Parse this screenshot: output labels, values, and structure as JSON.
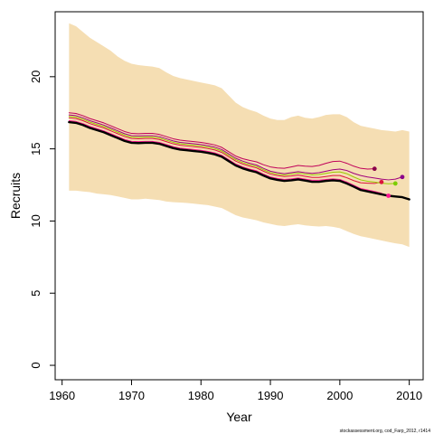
{
  "chart_data": {
    "type": "line",
    "xlabel": "Year",
    "ylabel": "Recruits",
    "xlim": [
      1959,
      2012
    ],
    "ylim": [
      -1,
      24.5
    ],
    "xticks": [
      1960,
      1970,
      1980,
      1990,
      2000,
      2010
    ],
    "yticks": [
      0,
      5,
      10,
      15,
      20
    ],
    "y_tick_rotation": "vertical",
    "grid": false,
    "legend": "none",
    "band": {
      "color": "#f5deb3",
      "x": [
        1961,
        1962,
        1963,
        1964,
        1965,
        1966,
        1967,
        1968,
        1969,
        1970,
        1971,
        1972,
        1973,
        1974,
        1975,
        1976,
        1977,
        1978,
        1979,
        1980,
        1981,
        1982,
        1983,
        1984,
        1985,
        1986,
        1987,
        1988,
        1989,
        1990,
        1991,
        1992,
        1993,
        1994,
        1995,
        1996,
        1997,
        1998,
        1999,
        2000,
        2001,
        2002,
        2003,
        2004,
        2005,
        2006,
        2007,
        2008,
        2009,
        2010
      ],
      "upper": [
        23.7,
        23.5,
        23.1,
        22.7,
        22.4,
        22.1,
        21.8,
        21.4,
        21.1,
        20.9,
        20.8,
        20.75,
        20.7,
        20.6,
        20.3,
        20.05,
        19.9,
        19.8,
        19.7,
        19.6,
        19.5,
        19.4,
        19.2,
        18.7,
        18.2,
        17.9,
        17.7,
        17.55,
        17.3,
        17.1,
        17.0,
        17.0,
        17.2,
        17.3,
        17.15,
        17.1,
        17.2,
        17.35,
        17.4,
        17.4,
        17.2,
        16.85,
        16.6,
        16.5,
        16.4,
        16.3,
        16.25,
        16.2,
        16.3,
        16.2
      ],
      "lower": [
        12.1,
        12.1,
        12.05,
        12.0,
        11.9,
        11.85,
        11.8,
        11.7,
        11.6,
        11.5,
        11.5,
        11.55,
        11.5,
        11.45,
        11.35,
        11.3,
        11.28,
        11.25,
        11.2,
        11.15,
        11.1,
        11.0,
        10.9,
        10.65,
        10.4,
        10.25,
        10.15,
        10.05,
        9.9,
        9.8,
        9.7,
        9.65,
        9.72,
        9.78,
        9.7,
        9.65,
        9.62,
        9.65,
        9.6,
        9.5,
        9.3,
        9.1,
        8.95,
        8.85,
        8.75,
        8.65,
        8.55,
        8.45,
        8.38,
        8.2
      ]
    },
    "series": [
      {
        "color": "#000000",
        "width": 2.4,
        "x": [
          1961,
          1962,
          1963,
          1964,
          1965,
          1966,
          1967,
          1968,
          1969,
          1970,
          1971,
          1972,
          1973,
          1974,
          1975,
          1976,
          1977,
          1978,
          1979,
          1980,
          1981,
          1982,
          1983,
          1984,
          1985,
          1986,
          1987,
          1988,
          1989,
          1990,
          1991,
          1992,
          1993,
          1994,
          1995,
          1996,
          1997,
          1998,
          1999,
          2000,
          2001,
          2002,
          2003,
          2004,
          2005,
          2006,
          2007,
          2008,
          2009,
          2010
        ],
        "y": [
          16.85,
          16.8,
          16.65,
          16.45,
          16.3,
          16.15,
          15.95,
          15.75,
          15.55,
          15.42,
          15.4,
          15.42,
          15.42,
          15.35,
          15.2,
          15.05,
          14.95,
          14.9,
          14.85,
          14.8,
          14.72,
          14.62,
          14.45,
          14.15,
          13.85,
          13.65,
          13.5,
          13.38,
          13.15,
          12.95,
          12.85,
          12.78,
          12.82,
          12.88,
          12.8,
          12.72,
          12.72,
          12.78,
          12.82,
          12.78,
          12.6,
          12.38,
          12.15,
          12.05,
          11.95,
          11.85,
          11.75,
          11.7,
          11.65,
          11.5
        ]
      },
      {
        "color": "#ff1493",
        "width": 1,
        "x": [
          1961,
          1962,
          1963,
          1964,
          1965,
          1966,
          1967,
          1968,
          1969,
          1970,
          1971,
          1972,
          1973,
          1974,
          1975,
          1976,
          1977,
          1978,
          1979,
          1980,
          1981,
          1982,
          1983,
          1984,
          1985,
          1986,
          1987,
          1988,
          1989,
          1990,
          1991,
          1992,
          1993,
          1994,
          1995,
          1996,
          1997,
          1998,
          1999,
          2000,
          2001,
          2002,
          2003,
          2004,
          2005,
          2006,
          2007
        ],
        "y": [
          16.95,
          16.9,
          16.75,
          16.55,
          16.4,
          16.25,
          16.05,
          15.85,
          15.65,
          15.52,
          15.5,
          15.52,
          15.52,
          15.45,
          15.3,
          15.15,
          15.05,
          15.0,
          14.95,
          14.9,
          14.82,
          14.72,
          14.55,
          14.25,
          13.95,
          13.75,
          13.6,
          13.48,
          13.25,
          13.05,
          12.95,
          12.88,
          12.92,
          12.98,
          12.9,
          12.82,
          12.82,
          12.88,
          12.92,
          12.88,
          12.7,
          12.48,
          12.25,
          12.15,
          12.05,
          11.92,
          11.75
        ]
      },
      {
        "color": "#dc143c",
        "width": 1,
        "x": [
          1961,
          1962,
          1963,
          1964,
          1965,
          1966,
          1967,
          1968,
          1969,
          1970,
          1971,
          1972,
          1973,
          1974,
          1975,
          1976,
          1977,
          1978,
          1979,
          1980,
          1981,
          1982,
          1983,
          1984,
          1985,
          1986,
          1987,
          1988,
          1989,
          1990,
          1991,
          1992,
          1993,
          1994,
          1995,
          1996,
          1997,
          1998,
          1999,
          2000,
          2001,
          2002,
          2003,
          2004,
          2005,
          2006
        ],
        "y": [
          17.15,
          17.1,
          16.95,
          16.75,
          16.6,
          16.45,
          16.25,
          16.05,
          15.85,
          15.72,
          15.7,
          15.72,
          15.72,
          15.65,
          15.5,
          15.35,
          15.25,
          15.2,
          15.15,
          15.1,
          15.02,
          14.92,
          14.75,
          14.45,
          14.15,
          13.95,
          13.8,
          13.68,
          13.45,
          13.25,
          13.15,
          13.08,
          13.12,
          13.18,
          13.1,
          13.02,
          13.02,
          13.08,
          13.15,
          13.15,
          13.0,
          12.8,
          12.65,
          12.62,
          12.6,
          12.7
        ]
      },
      {
        "color": "#99cc00",
        "width": 1,
        "x": [
          1961,
          1962,
          1963,
          1964,
          1965,
          1966,
          1967,
          1968,
          1969,
          1970,
          1971,
          1972,
          1973,
          1974,
          1975,
          1976,
          1977,
          1978,
          1979,
          1980,
          1981,
          1982,
          1983,
          1984,
          1985,
          1986,
          1987,
          1988,
          1989,
          1990,
          1991,
          1992,
          1993,
          1994,
          1995,
          1996,
          1997,
          1998,
          1999,
          2000,
          2001,
          2002,
          2003,
          2004,
          2005,
          2006,
          2007,
          2008
        ],
        "y": [
          17.25,
          17.2,
          17.05,
          16.85,
          16.7,
          16.55,
          16.35,
          16.15,
          15.95,
          15.82,
          15.8,
          15.82,
          15.82,
          15.75,
          15.6,
          15.45,
          15.35,
          15.3,
          15.25,
          15.2,
          15.12,
          15.02,
          14.85,
          14.55,
          14.25,
          14.05,
          13.9,
          13.78,
          13.55,
          13.35,
          13.25,
          13.18,
          13.25,
          13.32,
          13.25,
          13.2,
          13.22,
          13.3,
          13.38,
          13.4,
          13.28,
          13.05,
          12.85,
          12.75,
          12.7,
          12.62,
          12.58,
          12.6
        ]
      },
      {
        "color": "#a0007a",
        "width": 1,
        "x": [
          1961,
          1962,
          1963,
          1964,
          1965,
          1966,
          1967,
          1968,
          1969,
          1970,
          1971,
          1972,
          1973,
          1974,
          1975,
          1976,
          1977,
          1978,
          1979,
          1980,
          1981,
          1982,
          1983,
          1984,
          1985,
          1986,
          1987,
          1988,
          1989,
          1990,
          1991,
          1992,
          1993,
          1994,
          1995,
          1996,
          1997,
          1998,
          1999,
          2000,
          2001,
          2002,
          2003,
          2004,
          2005,
          2006,
          2007,
          2008,
          2009
        ],
        "y": [
          17.35,
          17.3,
          17.15,
          16.95,
          16.8,
          16.65,
          16.45,
          16.25,
          16.05,
          15.92,
          15.9,
          15.92,
          15.92,
          15.85,
          15.7,
          15.55,
          15.45,
          15.4,
          15.35,
          15.3,
          15.22,
          15.12,
          14.95,
          14.65,
          14.35,
          14.15,
          14.0,
          13.88,
          13.65,
          13.45,
          13.35,
          13.28,
          13.35,
          13.42,
          13.35,
          13.3,
          13.35,
          13.45,
          13.55,
          13.6,
          13.5,
          13.3,
          13.15,
          13.05,
          12.98,
          12.9,
          12.85,
          12.9,
          13.05
        ]
      },
      {
        "color": "#c0005a",
        "width": 1,
        "x": [
          1961,
          1962,
          1963,
          1964,
          1965,
          1966,
          1967,
          1968,
          1969,
          1970,
          1971,
          1972,
          1973,
          1974,
          1975,
          1976,
          1977,
          1978,
          1979,
          1980,
          1981,
          1982,
          1983,
          1984,
          1985,
          1986,
          1987,
          1988,
          1989,
          1990,
          1991,
          1992,
          1993,
          1994,
          1995,
          1996,
          1997,
          1998,
          1999,
          2000,
          2001,
          2002,
          2003,
          2004,
          2005
        ],
        "y": [
          17.5,
          17.45,
          17.3,
          17.1,
          16.95,
          16.8,
          16.6,
          16.4,
          16.2,
          16.07,
          16.05,
          16.07,
          16.07,
          16.0,
          15.85,
          15.7,
          15.6,
          15.55,
          15.5,
          15.45,
          15.37,
          15.27,
          15.1,
          14.8,
          14.5,
          14.32,
          14.2,
          14.1,
          13.9,
          13.75,
          13.68,
          13.65,
          13.75,
          13.85,
          13.8,
          13.78,
          13.85,
          14.0,
          14.12,
          14.15,
          14.0,
          13.8,
          13.65,
          13.6,
          13.62
        ]
      }
    ],
    "endpoints": [
      {
        "x": 2005,
        "y": 13.62,
        "color": "#8b004b"
      },
      {
        "x": 2006,
        "y": 12.7,
        "color": "#dc143c"
      },
      {
        "x": 2007,
        "y": 11.75,
        "color": "#ff1493"
      },
      {
        "x": 2008,
        "y": 12.6,
        "color": "#7ccd00"
      },
      {
        "x": 2009,
        "y": 13.05,
        "color": "#8b008b"
      }
    ],
    "credit": "stockassessment.org, cod_Farp_2012, r1414"
  }
}
